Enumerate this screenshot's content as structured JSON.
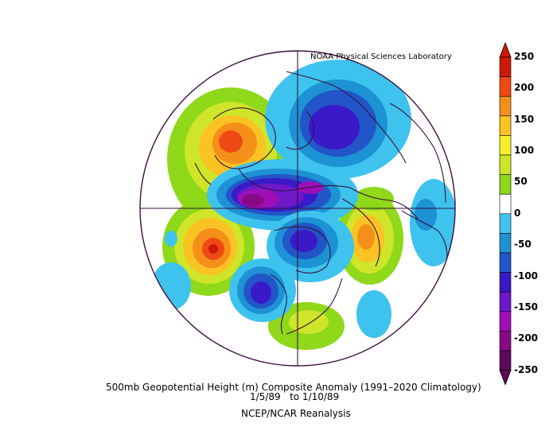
{
  "credit": "NOAA Physical Sciences Laboratory",
  "title": "500mb Geopotential Height (m) Composite Anomaly (1991–2020 Climatology)",
  "dates": "1/5/89   to 1/10/89",
  "source": "NCEP/NCAR Reanalysis",
  "colorbar": {
    "ticks": [
      "250",
      "200",
      "150",
      "100",
      "50",
      "0",
      "-50",
      "-100",
      "-150",
      "-200",
      "-250"
    ],
    "colors": [
      "#cc1a0a",
      "#ef4a16",
      "#f4901a",
      "#fbc223",
      "#f7ef2c",
      "#cfe52a",
      "#8fd81a",
      "#ffffff",
      "#3ec3ee",
      "#1d92d4",
      "#2255c8",
      "#3a19c8",
      "#6e18c9",
      "#9e10b6",
      "#870a85",
      "#5c0a5c"
    ]
  },
  "map": {
    "projection": "north-polar-stereographic",
    "colors": {
      "land_outline": "#3b0f3f",
      "grid": "#3b0f3f"
    }
  }
}
